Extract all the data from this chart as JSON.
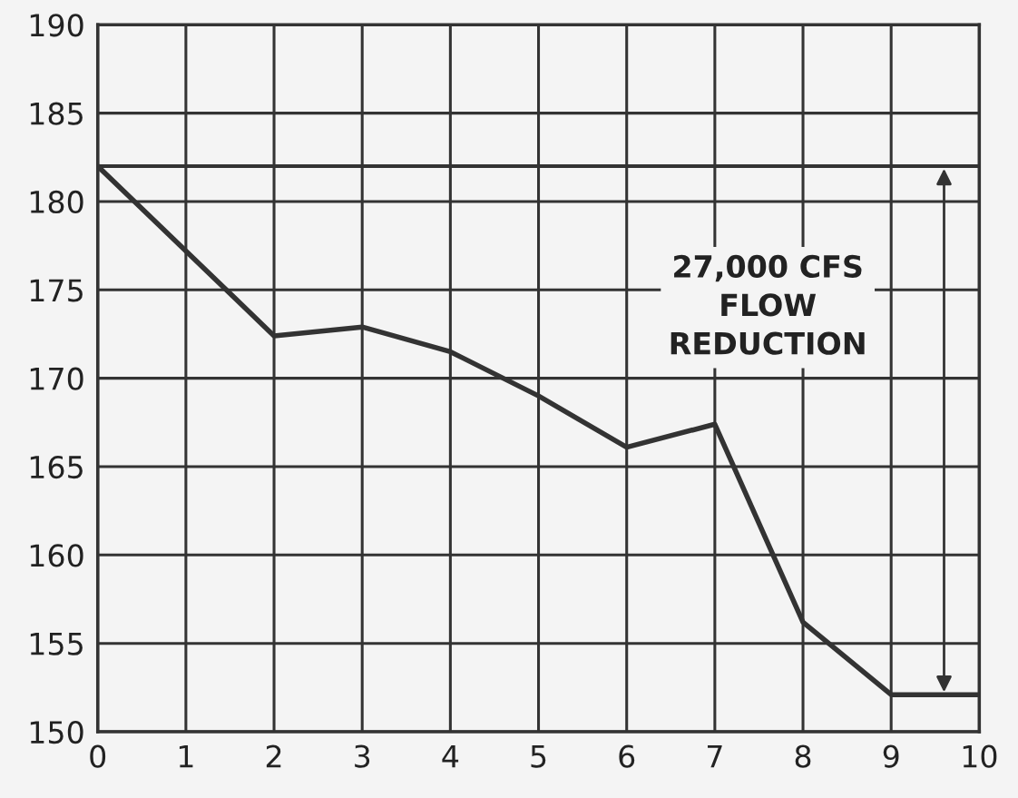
{
  "chart_data": {
    "type": "line",
    "x": [
      0,
      2,
      3,
      4,
      5,
      6,
      7,
      8,
      9,
      10
    ],
    "series": [
      {
        "color": "#333333",
        "values": [
          182,
          172.4,
          172.9,
          171.5,
          169,
          166.1,
          167.4,
          156.2,
          152.1,
          152.1
        ]
      }
    ],
    "xlim": [
      0,
      10
    ],
    "xticks": [
      0,
      1,
      2,
      3,
      4,
      5,
      6,
      7,
      8,
      9,
      10
    ],
    "ylim": [
      150,
      190
    ],
    "yticks": [
      150,
      155,
      160,
      165,
      170,
      175,
      180,
      185,
      190
    ],
    "grid": true,
    "marker": "none",
    "line_style": "solid",
    "ref_lines": [
      {
        "axis": "y",
        "value": 182,
        "color": "#333333"
      }
    ],
    "annotations": [
      "27,000 CFS\nFLOW\nREDUCTION"
    ]
  }
}
